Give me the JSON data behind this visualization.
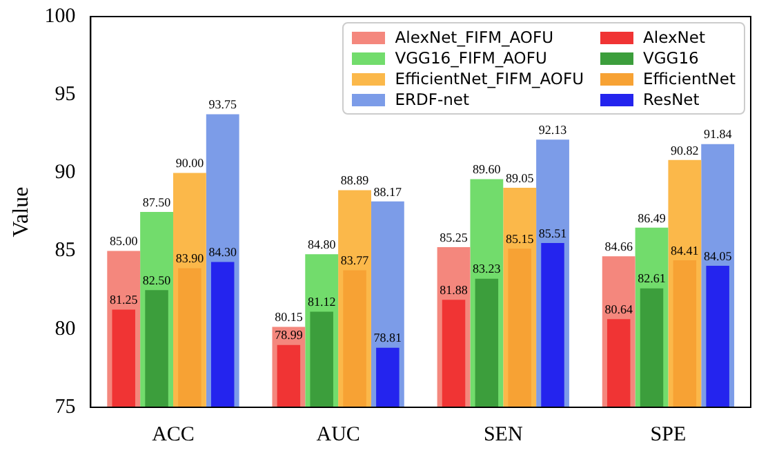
{
  "chart_data": {
    "type": "bar",
    "ylabel": "Value",
    "categories": [
      "ACC",
      "AUC",
      "SEN",
      "SPE"
    ],
    "ylim": [
      75,
      100
    ],
    "yticks": [
      75,
      80,
      85,
      90,
      95,
      100
    ],
    "grid": false,
    "legend": "top right",
    "series": [
      {
        "name": "AlexNet_FIFM_AOFU",
        "color": "#f4877d",
        "values": [
          85.0,
          80.15,
          85.25,
          84.66
        ],
        "value_labels": [
          "85.00",
          "80.15",
          "85.25",
          "84.66"
        ]
      },
      {
        "name": "AlexNet",
        "color": "#f03434",
        "values": [
          81.25,
          78.99,
          81.88,
          80.64
        ],
        "value_labels": [
          "81.25",
          "78.99",
          "81.88",
          "80.64"
        ]
      },
      {
        "name": "VGG16_FIFM_AOFU",
        "color": "#72dc6c",
        "values": [
          87.5,
          84.8,
          89.6,
          86.49
        ],
        "value_labels": [
          "87.50",
          "84.80",
          "89.60",
          "86.49"
        ]
      },
      {
        "name": "VGG16",
        "color": "#3c9e3c",
        "values": [
          82.5,
          81.12,
          83.23,
          82.61
        ],
        "value_labels": [
          "82.50",
          "81.12",
          "83.23",
          "82.61"
        ]
      },
      {
        "name": "EfficientNet_FIFM_AOFU",
        "color": "#fbb84a",
        "values": [
          90.0,
          88.89,
          89.05,
          90.82
        ],
        "value_labels": [
          "90.00",
          "88.89",
          "89.05",
          "90.82"
        ]
      },
      {
        "name": "EfficientNet",
        "color": "#f7a234",
        "values": [
          83.9,
          83.77,
          85.15,
          84.41
        ],
        "value_labels": [
          "83.90",
          "83.77",
          "85.15",
          "84.41"
        ]
      },
      {
        "name": "ERDF-net",
        "color": "#7c9ce8",
        "values": [
          93.75,
          88.17,
          92.13,
          91.84
        ],
        "value_labels": [
          "93.75",
          "88.17",
          "92.13",
          "91.84"
        ]
      },
      {
        "name": "ResNet",
        "color": "#2424ee",
        "values": [
          84.3,
          78.81,
          85.51,
          84.05
        ],
        "value_labels": [
          "84.30",
          "78.81",
          "85.51",
          "84.05"
        ]
      }
    ]
  }
}
